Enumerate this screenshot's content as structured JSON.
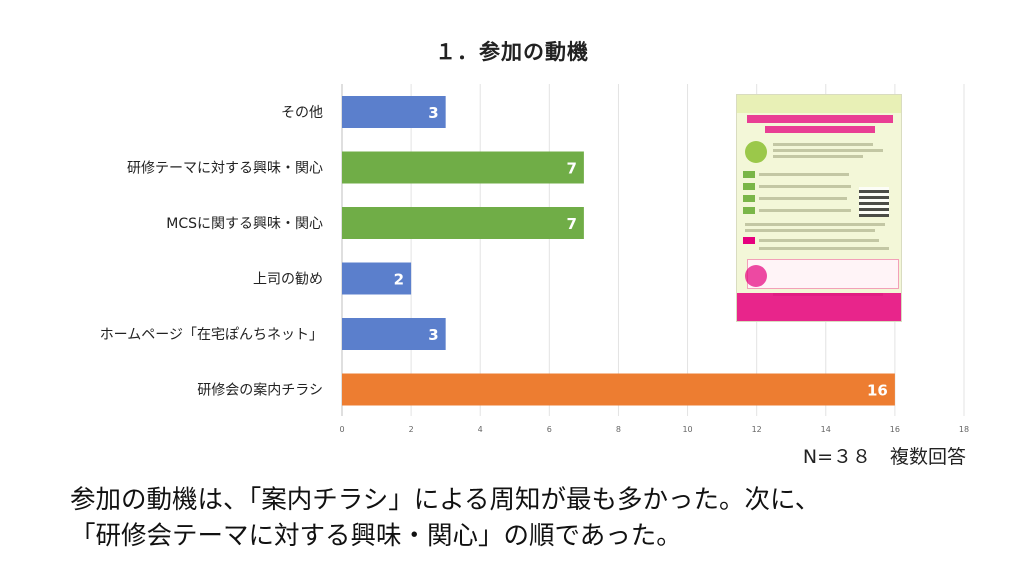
{
  "title": "１．参加の動機",
  "note": "N=３８　複数回答",
  "summary": {
    "line1": "参加の動機は、「案内チラシ」による周知が最も多かった。次に、",
    "line2": "「研修会テーマに対する興味・関心」の順であった。"
  },
  "chart_data": {
    "type": "bar",
    "orientation": "horizontal",
    "categories": [
      "その他",
      "研修テーマに対する興味・関心",
      "MCSに関する興味・関心",
      "上司の勧め",
      "ホームページ「在宅ぽんちネット」",
      "研修会の案内チラシ"
    ],
    "values": [
      3,
      7,
      7,
      2,
      3,
      16
    ],
    "colors": [
      "#5b7fcc",
      "#70ad47",
      "#70ad47",
      "#5b7fcc",
      "#5b7fcc",
      "#ed7d31"
    ],
    "xlim": [
      0,
      18
    ],
    "xticks": [
      0,
      2,
      4,
      6,
      8,
      10,
      12,
      14,
      16,
      18
    ],
    "grid": true,
    "data_labels": true
  },
  "flyer": {
    "icon": "event-flyer-image"
  }
}
